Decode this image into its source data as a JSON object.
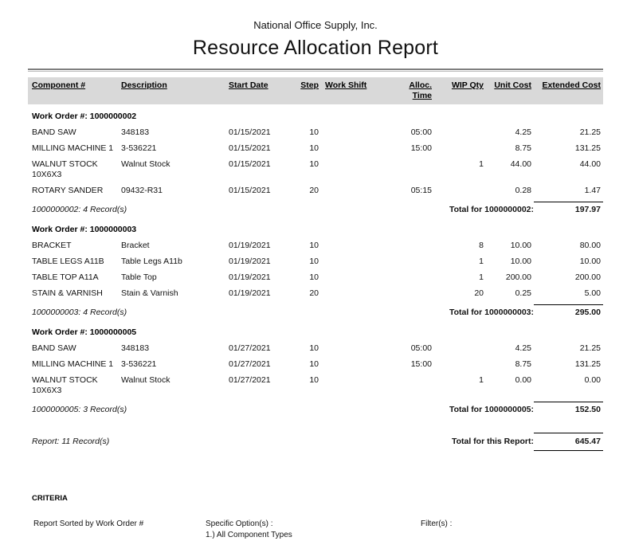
{
  "header": {
    "company": "National Office Supply, Inc.",
    "title": "Resource Allocation Report"
  },
  "table": {
    "columns": [
      "Component #",
      "Description",
      "Start Date",
      "Step",
      "Work Shift",
      "Alloc. Time",
      "WIP Qty",
      "Unit Cost",
      "Extended Cost"
    ],
    "groups": [
      {
        "work_order_label": "Work Order #: 1000000002",
        "rows": [
          {
            "component": "BAND SAW",
            "description": "348183",
            "start_date": "01/15/2021",
            "step": "10",
            "work_shift": "",
            "alloc_time": "05:00",
            "wip_qty": "",
            "unit_cost": "4.25",
            "extended_cost": "21.25"
          },
          {
            "component": "MILLING MACHINE 1",
            "description": "3-536221",
            "start_date": "01/15/2021",
            "step": "10",
            "work_shift": "",
            "alloc_time": "15:00",
            "wip_qty": "",
            "unit_cost": "8.75",
            "extended_cost": "131.25"
          },
          {
            "component": "WALNUT STOCK 10X6X3",
            "description": "Walnut Stock",
            "start_date": "01/15/2021",
            "step": "10",
            "work_shift": "",
            "alloc_time": "",
            "wip_qty": "1",
            "unit_cost": "44.00",
            "extended_cost": "44.00"
          },
          {
            "component": "ROTARY SANDER",
            "description": "09432-R31",
            "start_date": "01/15/2021",
            "step": "20",
            "work_shift": "",
            "alloc_time": "05:15",
            "wip_qty": "",
            "unit_cost": "0.28",
            "extended_cost": "1.47"
          }
        ],
        "record_count": "1000000002: 4 Record(s)",
        "total_label": "Total for 1000000002:",
        "total_value": "197.97"
      },
      {
        "work_order_label": "Work Order #: 1000000003",
        "rows": [
          {
            "component": "BRACKET",
            "description": "Bracket",
            "start_date": "01/19/2021",
            "step": "10",
            "work_shift": "",
            "alloc_time": "",
            "wip_qty": "8",
            "unit_cost": "10.00",
            "extended_cost": "80.00"
          },
          {
            "component": "TABLE LEGS A11B",
            "description": "Table Legs A11b",
            "start_date": "01/19/2021",
            "step": "10",
            "work_shift": "",
            "alloc_time": "",
            "wip_qty": "1",
            "unit_cost": "10.00",
            "extended_cost": "10.00"
          },
          {
            "component": "TABLE TOP A11A",
            "description": "Table Top",
            "start_date": "01/19/2021",
            "step": "10",
            "work_shift": "",
            "alloc_time": "",
            "wip_qty": "1",
            "unit_cost": "200.00",
            "extended_cost": "200.00"
          },
          {
            "component": "STAIN & VARNISH",
            "description": "Stain & Varnish",
            "start_date": "01/19/2021",
            "step": "20",
            "work_shift": "",
            "alloc_time": "",
            "wip_qty": "20",
            "unit_cost": "0.25",
            "extended_cost": "5.00"
          }
        ],
        "record_count": "1000000003: 4 Record(s)",
        "total_label": "Total for 1000000003:",
        "total_value": "295.00"
      },
      {
        "work_order_label": "Work Order #: 1000000005",
        "rows": [
          {
            "component": "BAND SAW",
            "description": "348183",
            "start_date": "01/27/2021",
            "step": "10",
            "work_shift": "",
            "alloc_time": "05:00",
            "wip_qty": "",
            "unit_cost": "4.25",
            "extended_cost": "21.25"
          },
          {
            "component": "MILLING MACHINE 1",
            "description": "3-536221",
            "start_date": "01/27/2021",
            "step": "10",
            "work_shift": "",
            "alloc_time": "15:00",
            "wip_qty": "",
            "unit_cost": "8.75",
            "extended_cost": "131.25"
          },
          {
            "component": "WALNUT STOCK 10X6X3",
            "description": "Walnut Stock",
            "start_date": "01/27/2021",
            "step": "10",
            "work_shift": "",
            "alloc_time": "",
            "wip_qty": "1",
            "unit_cost": "0.00",
            "extended_cost": "0.00"
          }
        ],
        "record_count": "1000000005: 3 Record(s)",
        "total_label": "Total for 1000000005:",
        "total_value": "152.50"
      }
    ],
    "report_count": "Report: 11 Record(s)",
    "report_total_label": "Total for this Report:",
    "report_total_value": "645.47"
  },
  "criteria": {
    "heading": "CRITERIA",
    "sorted_by": "Report Sorted by Work Order #",
    "specific_options_label": "Specific Option(s) :",
    "specific_options": [
      "1.) All Component Types"
    ],
    "filters_label": "Filter(s) :"
  }
}
